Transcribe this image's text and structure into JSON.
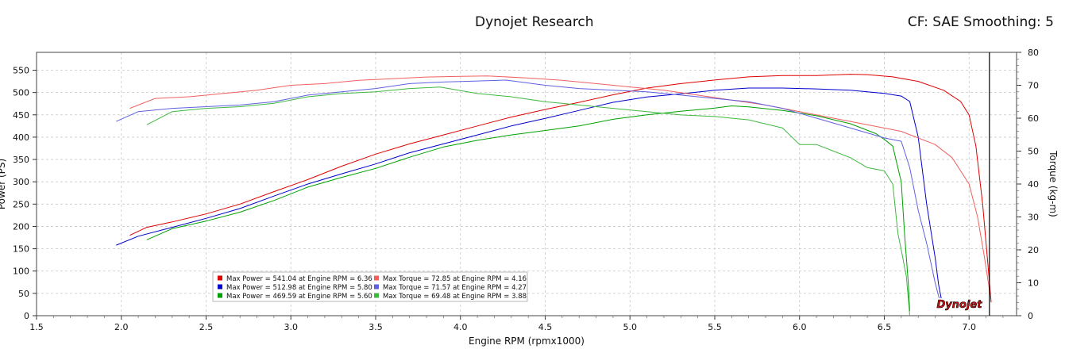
{
  "header": {
    "title": "Dynojet Research",
    "cf_label": "CF: SAE Smoothing: 5"
  },
  "chart_data": {
    "type": "line",
    "xlabel": "Engine RPM (rpmx1000)",
    "ylabel": "Power (PS)",
    "y2label": "Torque (kg-m)",
    "xlim": [
      1.5,
      7.28
    ],
    "ylim": [
      0,
      590
    ],
    "y2lim": [
      0,
      80
    ],
    "xticks": [
      "1.5",
      "2.0",
      "2.5",
      "3.0",
      "3.5",
      "4.0",
      "4.5",
      "5.0",
      "5.5",
      "6.0",
      "6.5",
      "7.0"
    ],
    "yticks": [
      "0",
      "50",
      "100",
      "150",
      "200",
      "250",
      "300",
      "350",
      "400",
      "450",
      "500",
      "550"
    ],
    "y2ticks": [
      "0",
      "10",
      "20",
      "30",
      "40",
      "50",
      "60",
      "70",
      "80"
    ],
    "marker_x": 7.12,
    "colors": {
      "run1": "#e00000",
      "run2": "#0000cc",
      "run3": "#00a000",
      "run1_torque": "#f06060",
      "run2_torque": "#6060e0",
      "run3_torque": "#40b840"
    },
    "series": [
      {
        "label_id": "power1",
        "axis": "left",
        "color_key": "run1",
        "x": [
          2.05,
          2.15,
          2.3,
          2.5,
          2.7,
          2.9,
          3.1,
          3.3,
          3.5,
          3.7,
          3.9,
          4.1,
          4.3,
          4.5,
          4.7,
          4.9,
          5.1,
          5.3,
          5.5,
          5.7,
          5.9,
          6.1,
          6.3,
          6.4,
          6.55,
          6.7,
          6.85,
          6.95,
          7.0,
          7.04,
          7.08,
          7.11,
          7.13
        ],
        "values": [
          180,
          198,
          210,
          228,
          250,
          278,
          305,
          335,
          362,
          385,
          405,
          425,
          445,
          462,
          478,
          495,
          510,
          520,
          528,
          535,
          538,
          538,
          541,
          540,
          535,
          525,
          505,
          480,
          450,
          380,
          250,
          120,
          30
        ]
      },
      {
        "label_id": "power2",
        "axis": "left",
        "color_key": "run2",
        "x": [
          1.97,
          2.1,
          2.3,
          2.5,
          2.7,
          2.9,
          3.1,
          3.3,
          3.5,
          3.7,
          3.9,
          4.1,
          4.3,
          4.5,
          4.7,
          4.9,
          5.1,
          5.3,
          5.5,
          5.7,
          5.9,
          6.1,
          6.3,
          6.5,
          6.6,
          6.65,
          6.7,
          6.75,
          6.8,
          6.82,
          6.84
        ],
        "values": [
          158,
          178,
          198,
          218,
          240,
          268,
          295,
          318,
          340,
          365,
          385,
          405,
          425,
          442,
          460,
          478,
          490,
          497,
          505,
          510,
          510,
          508,
          505,
          498,
          492,
          480,
          400,
          250,
          130,
          70,
          30
        ]
      },
      {
        "label_id": "power3",
        "axis": "left",
        "color_key": "run3",
        "x": [
          2.15,
          2.3,
          2.5,
          2.7,
          2.9,
          3.1,
          3.3,
          3.5,
          3.7,
          3.9,
          4.1,
          4.3,
          4.5,
          4.7,
          4.9,
          5.1,
          5.3,
          5.5,
          5.6,
          5.7,
          5.9,
          6.1,
          6.3,
          6.45,
          6.5,
          6.55,
          6.6,
          6.62,
          6.64,
          6.65
        ],
        "values": [
          170,
          195,
          212,
          232,
          258,
          288,
          310,
          330,
          355,
          378,
          393,
          405,
          415,
          425,
          440,
          450,
          458,
          465,
          470,
          468,
          460,
          448,
          430,
          408,
          395,
          380,
          300,
          180,
          80,
          10
        ]
      },
      {
        "label_id": "torque1",
        "axis": "right",
        "color_key": "run1_torque",
        "x": [
          2.05,
          2.2,
          2.4,
          2.6,
          2.8,
          3.0,
          3.2,
          3.4,
          3.6,
          3.8,
          4.0,
          4.16,
          4.4,
          4.6,
          4.8,
          5.0,
          5.2,
          5.4,
          5.6,
          5.8,
          6.0,
          6.2,
          6.4,
          6.6,
          6.8,
          6.9,
          7.0,
          7.05,
          7.09,
          7.12
        ],
        "values": [
          63,
          66,
          66.5,
          67.5,
          68.5,
          70,
          70.5,
          71.5,
          72,
          72.5,
          72.7,
          72.85,
          72.2,
          71.5,
          70.5,
          69.5,
          68.5,
          67,
          65.5,
          64,
          62,
          60,
          58,
          56,
          52,
          48,
          40,
          30,
          18,
          8
        ]
      },
      {
        "label_id": "torque2",
        "axis": "right",
        "color_key": "run2_torque",
        "x": [
          1.97,
          2.1,
          2.3,
          2.5,
          2.7,
          2.9,
          3.1,
          3.3,
          3.5,
          3.7,
          3.9,
          4.1,
          4.27,
          4.5,
          4.7,
          4.9,
          5.1,
          5.3,
          5.5,
          5.7,
          5.9,
          6.1,
          6.3,
          6.5,
          6.6,
          6.65,
          6.7,
          6.75,
          6.8,
          6.84
        ],
        "values": [
          59,
          62,
          63,
          63.5,
          64,
          65,
          67,
          68,
          69,
          70.5,
          71,
          71.3,
          71.57,
          70,
          69,
          68.5,
          68,
          67,
          66,
          65,
          63,
          60,
          57,
          54,
          53,
          45,
          32,
          22,
          10,
          2
        ]
      },
      {
        "label_id": "torque3",
        "axis": "right",
        "color_key": "run3_torque",
        "x": [
          2.15,
          2.3,
          2.5,
          2.7,
          2.9,
          3.1,
          3.3,
          3.5,
          3.7,
          3.88,
          4.1,
          4.3,
          4.5,
          4.7,
          4.9,
          5.1,
          5.3,
          5.5,
          5.7,
          5.9,
          6.0,
          6.1,
          6.2,
          6.3,
          6.4,
          6.5,
          6.55,
          6.58,
          6.6,
          6.63,
          6.65
        ],
        "values": [
          58,
          62,
          63,
          63.5,
          64.5,
          66.5,
          67.5,
          68,
          69,
          69.48,
          67.5,
          66.5,
          65,
          64,
          63,
          62,
          61,
          60.5,
          59.5,
          57,
          52,
          52,
          50,
          48,
          45,
          44,
          40,
          25,
          20,
          12,
          0
        ]
      }
    ],
    "legend": [
      {
        "text": "Max Power = 541.04 at Engine RPM = 6.36",
        "color_key": "run1"
      },
      {
        "text": "Max Power = 512.98 at Engine RPM = 5.80",
        "color_key": "run2"
      },
      {
        "text": "Max Power = 469.59 at Engine RPM = 5.60",
        "color_key": "run3"
      },
      {
        "text": "Max Torque = 72.85 at Engine RPM = 4.16",
        "color_key": "run1_torque"
      },
      {
        "text": "Max Torque = 71.57 at Engine RPM = 4.27",
        "color_key": "run2_torque"
      },
      {
        "text": "Max Torque = 69.48 at Engine RPM = 3.88",
        "color_key": "run3_torque"
      }
    ],
    "logo_text": "Dynojet"
  }
}
